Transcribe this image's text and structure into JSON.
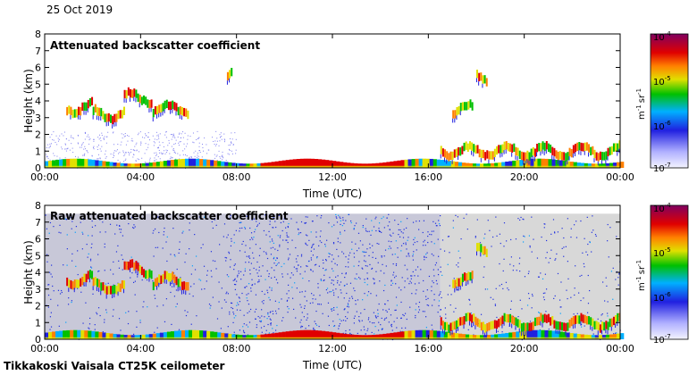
{
  "date": "25 Oct 2019",
  "footer": "Tikkakoski Vaisala CT25K ceilometer",
  "chart_data": [
    {
      "type": "heatmap",
      "title": "Attenuated backscatter coefficient",
      "xlabel": "Time (UTC)",
      "ylabel": "Height (km)",
      "xlim": [
        0,
        24
      ],
      "ylim": [
        0,
        8
      ],
      "x_ticks": [
        "00:00",
        "04:00",
        "08:00",
        "12:00",
        "16:00",
        "20:00",
        "00:00"
      ],
      "y_ticks": [
        "0",
        "1",
        "2",
        "3",
        "4",
        "5",
        "6",
        "7",
        "8"
      ],
      "colorbar": {
        "scale": "log",
        "range": [
          1e-07,
          0.0001
        ],
        "ticks": [
          {
            "base": "10",
            "exp": "-4"
          },
          {
            "base": "10",
            "exp": "-5"
          },
          {
            "base": "10",
            "exp": "-6"
          },
          {
            "base": "10",
            "exp": "-7"
          }
        ],
        "unit_main": "m",
        "unit_exp1": "-1",
        "unit_mid": "sr",
        "unit_exp2": "-1"
      },
      "cloud_layers": [
        {
          "start": 0.9,
          "end": 2.0,
          "height": 3.6
        },
        {
          "start": 2.0,
          "end": 3.3,
          "height": 3.2
        },
        {
          "start": 3.3,
          "end": 4.5,
          "height": 4.2
        },
        {
          "start": 4.5,
          "end": 6.0,
          "height": 3.5
        },
        {
          "start": 7.6,
          "end": 7.8,
          "height": 5.8
        },
        {
          "start": 17.0,
          "end": 17.8,
          "height": 3.5
        },
        {
          "start": 18.0,
          "end": 18.4,
          "height": 5.5
        },
        {
          "start": 16.5,
          "end": 24.0,
          "height": 1.0
        }
      ],
      "boundary_layer_km": 0.4,
      "background": "clear"
    },
    {
      "type": "heatmap",
      "title": "Raw attenuated backscatter coefficient",
      "xlabel": "Time (UTC)",
      "ylabel": "Height (km)",
      "xlim": [
        0,
        24
      ],
      "ylim": [
        0,
        8
      ],
      "x_ticks": [
        "00:00",
        "04:00",
        "08:00",
        "12:00",
        "16:00",
        "20:00",
        "00:00"
      ],
      "y_ticks": [
        "0",
        "1",
        "2",
        "3",
        "4",
        "5",
        "6",
        "7",
        "8"
      ],
      "colorbar": {
        "scale": "log",
        "range": [
          1e-07,
          0.0001
        ],
        "ticks": [
          {
            "base": "10",
            "exp": "-4"
          },
          {
            "base": "10",
            "exp": "-5"
          },
          {
            "base": "10",
            "exp": "-6"
          },
          {
            "base": "10",
            "exp": "-7"
          }
        ],
        "unit_main": "m",
        "unit_exp1": "-1",
        "unit_mid": "sr",
        "unit_exp2": "-1"
      },
      "cloud_layers": [
        {
          "start": 0.9,
          "end": 2.0,
          "height": 3.6
        },
        {
          "start": 2.0,
          "end": 3.3,
          "height": 3.2
        },
        {
          "start": 3.3,
          "end": 4.5,
          "height": 4.2
        },
        {
          "start": 4.5,
          "end": 6.0,
          "height": 3.5
        },
        {
          "start": 17.0,
          "end": 17.8,
          "height": 3.5
        },
        {
          "start": 18.0,
          "end": 18.4,
          "height": 5.5
        },
        {
          "start": 16.5,
          "end": 24.0,
          "height": 1.0
        }
      ],
      "boundary_layer_km": 0.4,
      "background": "noisy"
    }
  ]
}
